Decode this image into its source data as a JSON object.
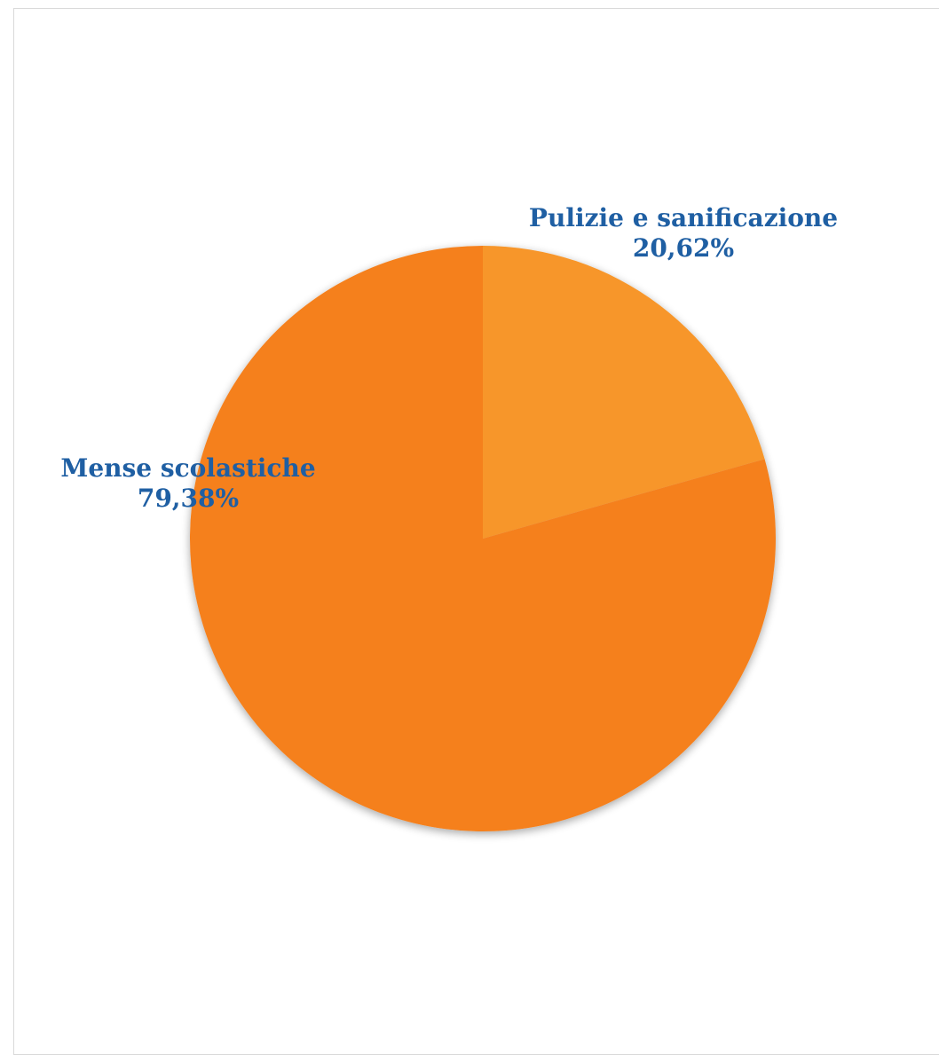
{
  "chart_data": {
    "type": "pie",
    "title": "",
    "start_angle_deg": 0,
    "direction": "clockwise",
    "label_color": "#1f5fa3",
    "shadow": true,
    "slices": [
      {
        "name": "Pulizie e sanificazione",
        "value": 20.62,
        "percent_label": "20,62%",
        "color": "#f7962a"
      },
      {
        "name": "Mense scolastiche",
        "value": 79.38,
        "percent_label": "79,38%",
        "color": "#f5801f"
      }
    ]
  }
}
